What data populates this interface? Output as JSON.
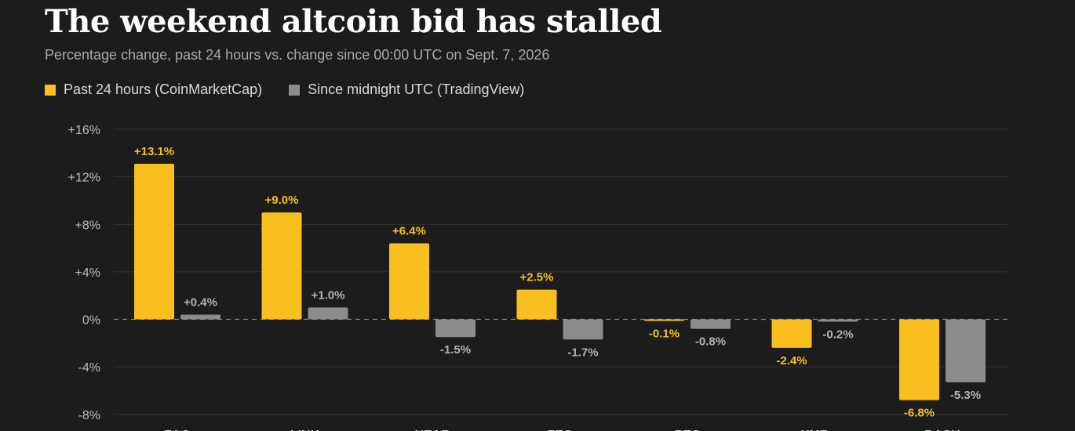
{
  "title": "The weekend altcoin bid has stalled",
  "subtitle": "Percentage change, past 24 hours vs. change since 00:00 UTC on Sept. 7, 2026",
  "colors": {
    "primary": "#f9bf1f",
    "secondary": "#8c8c8c",
    "background": "#1c1c1c"
  },
  "legend": [
    {
      "label": "Past 24 hours (CoinMarketCap)",
      "color": "#f9bf1f"
    },
    {
      "label": "Since midnight UTC (TradingView)",
      "color": "#8c8c8c"
    }
  ],
  "chart_data": {
    "type": "bar",
    "title": "The weekend altcoin bid has stalled",
    "subtitle": "Percentage change, past 24 hours vs. change since 00:00 UTC on Sept. 7, 2026",
    "categories": [
      "ZAO",
      "LINK",
      "NEAR",
      "ZEC",
      "BTC",
      "XMR",
      "DASH"
    ],
    "series": [
      {
        "name": "Past 24 hours (CoinMarketCap)",
        "color": "#f9bf1f",
        "values": [
          13.1,
          9.0,
          6.4,
          2.5,
          -0.1,
          -2.4,
          -6.8
        ],
        "labels": [
          "+13.1%",
          "+9.0%",
          "+6.4%",
          "+2.5%",
          "-0.1%",
          "-2.4%",
          "-6.8%"
        ]
      },
      {
        "name": "Since midnight UTC (TradingView)",
        "color": "#8c8c8c",
        "values": [
          0.4,
          1.0,
          -1.5,
          -1.7,
          -0.8,
          -0.2,
          -5.3
        ],
        "labels": [
          "+0.4%",
          "+1.0%",
          "-1.5%",
          "-1.7%",
          "-0.8%",
          "-0.2%",
          "-5.3%"
        ]
      }
    ],
    "yticks": [
      16,
      12,
      8,
      4,
      0,
      -4,
      -8
    ],
    "ytick_labels": [
      "+16%",
      "+12%",
      "+8%",
      "+4%",
      "0%",
      "-4%",
      "-8%"
    ],
    "ylim": [
      -8,
      16
    ],
    "xlabel": "",
    "ylabel": "",
    "grid": true,
    "zero_line": "dashed",
    "legend_position": "top-left"
  }
}
